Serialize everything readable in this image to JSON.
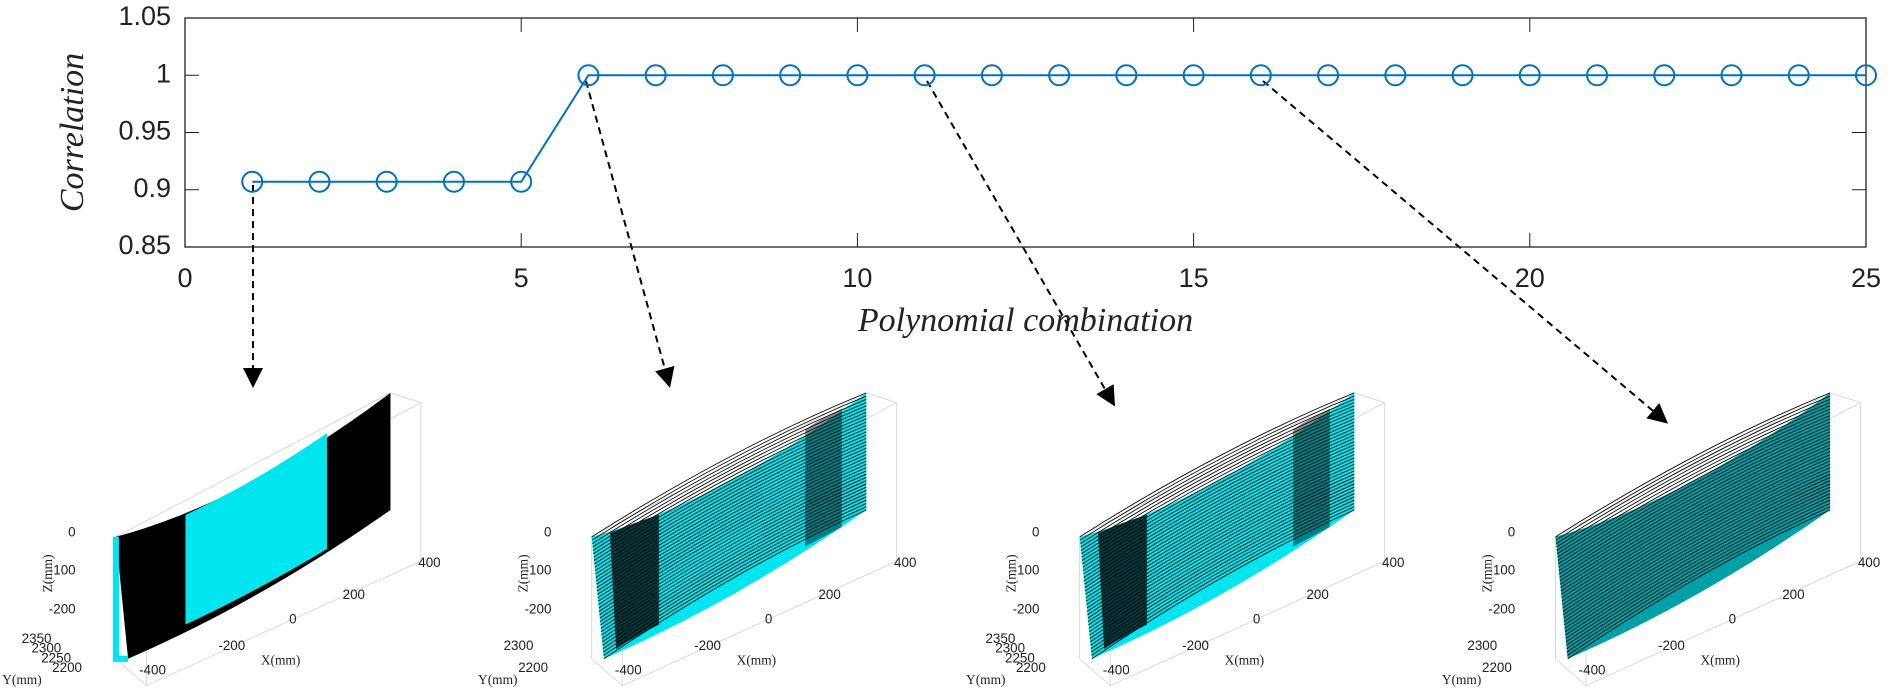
{
  "chart_data": [
    {
      "type": "line",
      "xlabel": "Polynomial combination",
      "ylabel": "Correlation",
      "x": [
        1,
        2,
        3,
        4,
        5,
        6,
        7,
        8,
        9,
        10,
        11,
        12,
        13,
        14,
        15,
        16,
        17,
        18,
        19,
        20,
        21,
        22,
        23,
        24,
        25
      ],
      "series": [
        {
          "color": "#0072bd",
          "values": [
            0.907,
            0.907,
            0.907,
            0.907,
            0.907,
            1,
            1,
            1,
            1,
            1,
            1,
            1,
            1,
            1,
            1,
            1,
            1,
            1,
            1,
            1,
            1,
            1,
            1,
            1,
            1
          ]
        }
      ],
      "xlim": [
        0,
        25
      ],
      "xticks": [
        0,
        5,
        10,
        15,
        20,
        25
      ],
      "ylim": [
        0.85,
        1.05
      ],
      "yticks": [
        0.85,
        0.9,
        0.95,
        1,
        1.05
      ],
      "grid": false
    },
    {
      "type": "surface3d",
      "xlabel": "X(mm)",
      "ylabel": "Y(mm)",
      "zlabel": "Z(mm)",
      "xticks": [
        -400,
        -200,
        0,
        200,
        400
      ],
      "yticks": [
        2350,
        2300,
        2250,
        2200
      ],
      "zticks": [
        0,
        -100,
        -200
      ]
    },
    {
      "type": "surface3d",
      "xlabel": "X(mm)",
      "ylabel": "Y(mm)",
      "zlabel": "Z(mm)",
      "xticks": [
        -400,
        -200,
        0,
        200,
        400
      ],
      "yticks": [
        2300,
        2200
      ],
      "zticks": [
        0,
        -100,
        -200
      ]
    },
    {
      "type": "surface3d",
      "xlabel": "X(mm)",
      "ylabel": "Y(mm)",
      "zlabel": "Z(mm)",
      "xticks": [
        -400,
        -200,
        0,
        200,
        400
      ],
      "yticks": [
        2350,
        2300,
        2250,
        2200
      ],
      "zticks": [
        0,
        -100,
        -200
      ]
    },
    {
      "type": "surface3d",
      "xlabel": "X(mm)",
      "ylabel": "Y(mm)",
      "zlabel": "Z(mm)",
      "xticks": [
        -400,
        -200,
        0,
        200,
        400
      ],
      "yticks": [
        2300,
        2200
      ],
      "zticks": [
        0,
        -100,
        -200
      ]
    }
  ]
}
